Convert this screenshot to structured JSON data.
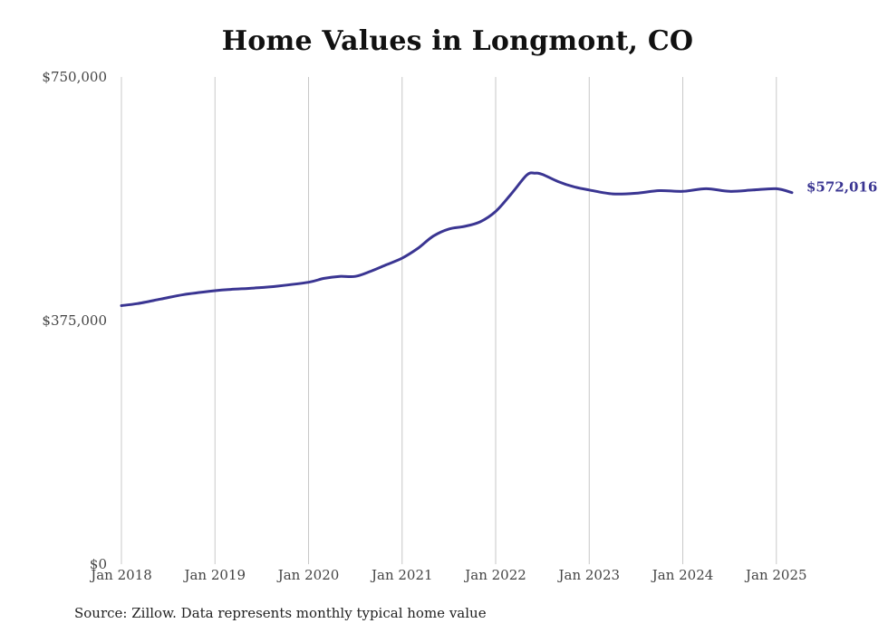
{
  "chart_data": {
    "type": "line",
    "title": "Home Values in Longmont, CO",
    "source": "Source: Zillow. Data represents monthly typical home value",
    "xlabel": "",
    "ylabel": "",
    "ylim": [
      0,
      750000
    ],
    "y_ticks": [
      {
        "value": 0,
        "label": "$0"
      },
      {
        "value": 375000,
        "label": "$375,000"
      },
      {
        "value": 750000,
        "label": "$750,000"
      }
    ],
    "x_ticks": [
      {
        "date": "2018-01",
        "label": "Jan 2018"
      },
      {
        "date": "2019-01",
        "label": "Jan 2019"
      },
      {
        "date": "2020-01",
        "label": "Jan 2020"
      },
      {
        "date": "2021-01",
        "label": "Jan 2021"
      },
      {
        "date": "2022-01",
        "label": "Jan 2022"
      },
      {
        "date": "2023-01",
        "label": "Jan 2023"
      },
      {
        "date": "2024-01",
        "label": "Jan 2024"
      },
      {
        "date": "2025-01",
        "label": "Jan 2025"
      }
    ],
    "xlim": [
      "2018-01",
      "2025-03"
    ],
    "grid": "vertical",
    "line_color": "#3a3592",
    "end_label": "$572,016",
    "series": [
      {
        "points": [
          {
            "x": "2018-01",
            "y": 398000
          },
          {
            "x": "2018-03",
            "y": 401000
          },
          {
            "x": "2018-06",
            "y": 408000
          },
          {
            "x": "2018-09",
            "y": 415000
          },
          {
            "x": "2019-01",
            "y": 421000
          },
          {
            "x": "2019-03",
            "y": 423000
          },
          {
            "x": "2019-06",
            "y": 425000
          },
          {
            "x": "2019-09",
            "y": 428000
          },
          {
            "x": "2020-01",
            "y": 434000
          },
          {
            "x": "2020-03",
            "y": 440000
          },
          {
            "x": "2020-05",
            "y": 443000
          },
          {
            "x": "2020-07",
            "y": 443000
          },
          {
            "x": "2020-09",
            "y": 451000
          },
          {
            "x": "2020-11",
            "y": 461000
          },
          {
            "x": "2021-01",
            "y": 471000
          },
          {
            "x": "2021-03",
            "y": 486000
          },
          {
            "x": "2021-05",
            "y": 505000
          },
          {
            "x": "2021-07",
            "y": 516000
          },
          {
            "x": "2021-09",
            "y": 520000
          },
          {
            "x": "2021-11",
            "y": 527000
          },
          {
            "x": "2022-01",
            "y": 543000
          },
          {
            "x": "2022-03",
            "y": 570000
          },
          {
            "x": "2022-05",
            "y": 599000
          },
          {
            "x": "2022-06",
            "y": 602000
          },
          {
            "x": "2022-07",
            "y": 600000
          },
          {
            "x": "2022-09",
            "y": 589000
          },
          {
            "x": "2022-11",
            "y": 581000
          },
          {
            "x": "2023-01",
            "y": 576000
          },
          {
            "x": "2023-04",
            "y": 570000
          },
          {
            "x": "2023-07",
            "y": 571000
          },
          {
            "x": "2023-10",
            "y": 575000
          },
          {
            "x": "2024-01",
            "y": 574000
          },
          {
            "x": "2024-04",
            "y": 578000
          },
          {
            "x": "2024-07",
            "y": 574000
          },
          {
            "x": "2024-10",
            "y": 576000
          },
          {
            "x": "2025-01",
            "y": 578000
          },
          {
            "x": "2025-03",
            "y": 572016
          }
        ]
      }
    ]
  }
}
